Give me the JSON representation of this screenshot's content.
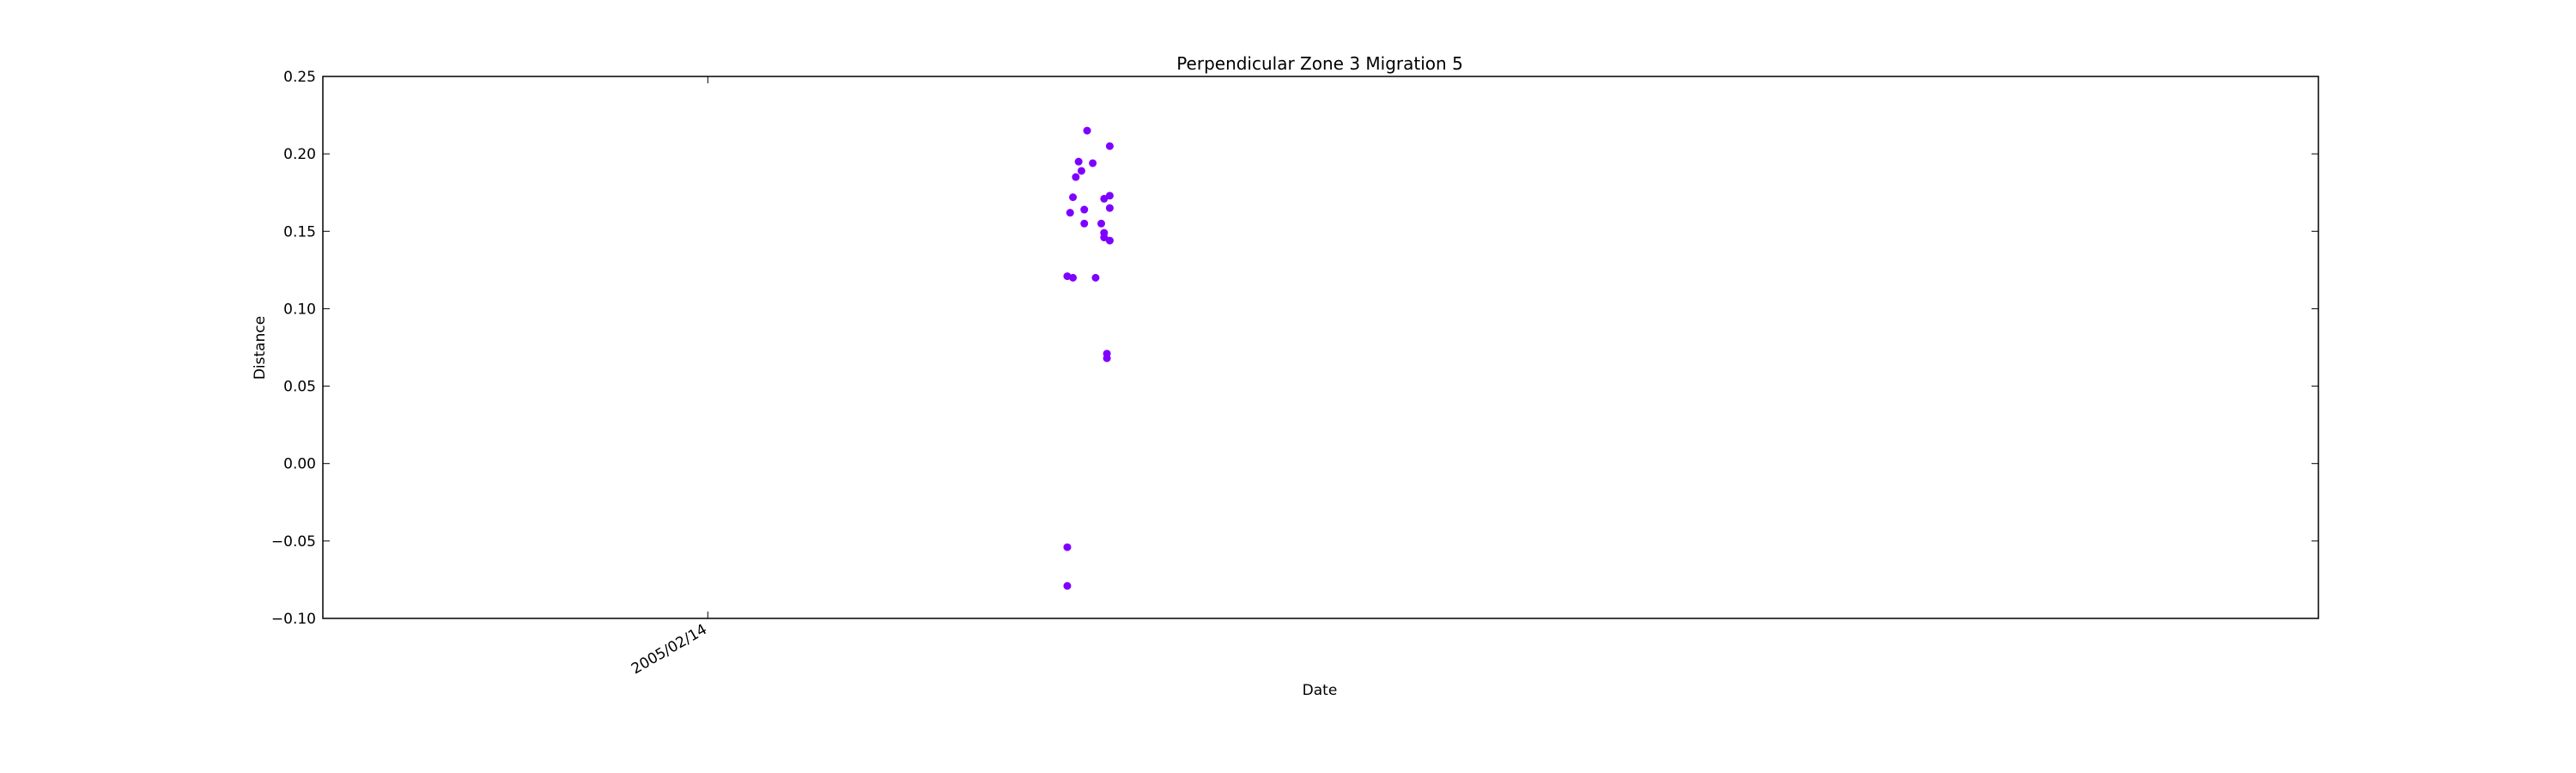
{
  "chart_data": {
    "type": "scatter",
    "title": "Perpendicular Zone 3 Migration 5",
    "xlabel": "Date",
    "ylabel": "Distance",
    "xlim": [
      "2004-10-01",
      "2006-09-06"
    ],
    "ylim": [
      -0.1,
      0.25
    ],
    "yticks": [
      -0.1,
      -0.05,
      0.0,
      0.05,
      0.1,
      0.15,
      0.2,
      0.25
    ],
    "ytick_labels": [
      "−0.10",
      "−0.05",
      "0.00",
      "0.05",
      "0.10",
      "0.15",
      "0.20",
      "0.25"
    ],
    "xticks": [
      "2005-02-14"
    ],
    "xtick_labels": [
      "2005/02/14"
    ],
    "grid": false,
    "marker_color": "#7f00ff",
    "series": [
      {
        "points": [
          {
            "x": "2005-06-21",
            "y": 0.121
          },
          {
            "x": "2005-06-21",
            "y": -0.054
          },
          {
            "x": "2005-06-21",
            "y": -0.079
          },
          {
            "x": "2005-06-22",
            "y": 0.162
          },
          {
            "x": "2005-06-23",
            "y": 0.12
          },
          {
            "x": "2005-06-23",
            "y": 0.172
          },
          {
            "x": "2005-06-24",
            "y": 0.185
          },
          {
            "x": "2005-06-25",
            "y": 0.195
          },
          {
            "x": "2005-06-26",
            "y": 0.189
          },
          {
            "x": "2005-06-27",
            "y": 0.155
          },
          {
            "x": "2005-06-27",
            "y": 0.164
          },
          {
            "x": "2005-06-28",
            "y": 0.215
          },
          {
            "x": "2005-06-30",
            "y": 0.194
          },
          {
            "x": "2005-07-01",
            "y": 0.12
          },
          {
            "x": "2005-07-03",
            "y": 0.155
          },
          {
            "x": "2005-07-04",
            "y": 0.171
          },
          {
            "x": "2005-07-04",
            "y": 0.149
          },
          {
            "x": "2005-07-04",
            "y": 0.146
          },
          {
            "x": "2005-07-05",
            "y": 0.071
          },
          {
            "x": "2005-07-05",
            "y": 0.068
          },
          {
            "x": "2005-07-06",
            "y": 0.205
          },
          {
            "x": "2005-07-06",
            "y": 0.173
          },
          {
            "x": "2005-07-06",
            "y": 0.165
          },
          {
            "x": "2005-07-06",
            "y": 0.144
          }
        ]
      }
    ]
  }
}
